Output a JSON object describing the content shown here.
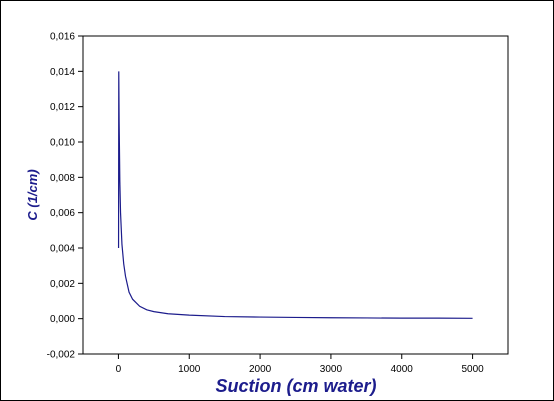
{
  "colors": {
    "series": "#1c1c8c",
    "axis": "#000000",
    "axis_title": "#1c1c8c",
    "background": "#ffffff"
  },
  "chart_data": {
    "type": "line",
    "title": "",
    "xlabel": "Suction (cm water)",
    "ylabel": "C (1/cm)",
    "xlim": [
      -500,
      5500
    ],
    "ylim": [
      -0.002,
      0.016
    ],
    "x_ticks": [
      0,
      1000,
      2000,
      3000,
      4000,
      5000
    ],
    "x_tick_labels": [
      "0",
      "1000",
      "2000",
      "3000",
      "4000",
      "5000"
    ],
    "y_ticks": [
      -0.002,
      0.0,
      0.002,
      0.004,
      0.006,
      0.008,
      0.01,
      0.012,
      0.014,
      0.016
    ],
    "y_tick_labels": [
      "-0,002",
      "0,000",
      "0,002",
      "0,004",
      "0,006",
      "0,008",
      "0,010",
      "0,012",
      "0,014",
      "0,016"
    ],
    "grid": false,
    "legend": "none",
    "series": [
      {
        "x": [
          2,
          5,
          10,
          20,
          30,
          50,
          75,
          100,
          150,
          200,
          300,
          400,
          500,
          700,
          1000,
          1500,
          2000,
          2500,
          3000,
          3500,
          4000,
          4500,
          5000
        ],
        "y": [
          0.004,
          0.014,
          0.0112,
          0.0078,
          0.006,
          0.0042,
          0.0031,
          0.0024,
          0.0015,
          0.0011,
          0.0007,
          0.0005,
          0.0004,
          0.00028,
          0.0002,
          0.00012,
          9e-05,
          7e-05,
          5e-05,
          4e-05,
          3e-05,
          3e-05,
          2e-05
        ]
      }
    ]
  }
}
